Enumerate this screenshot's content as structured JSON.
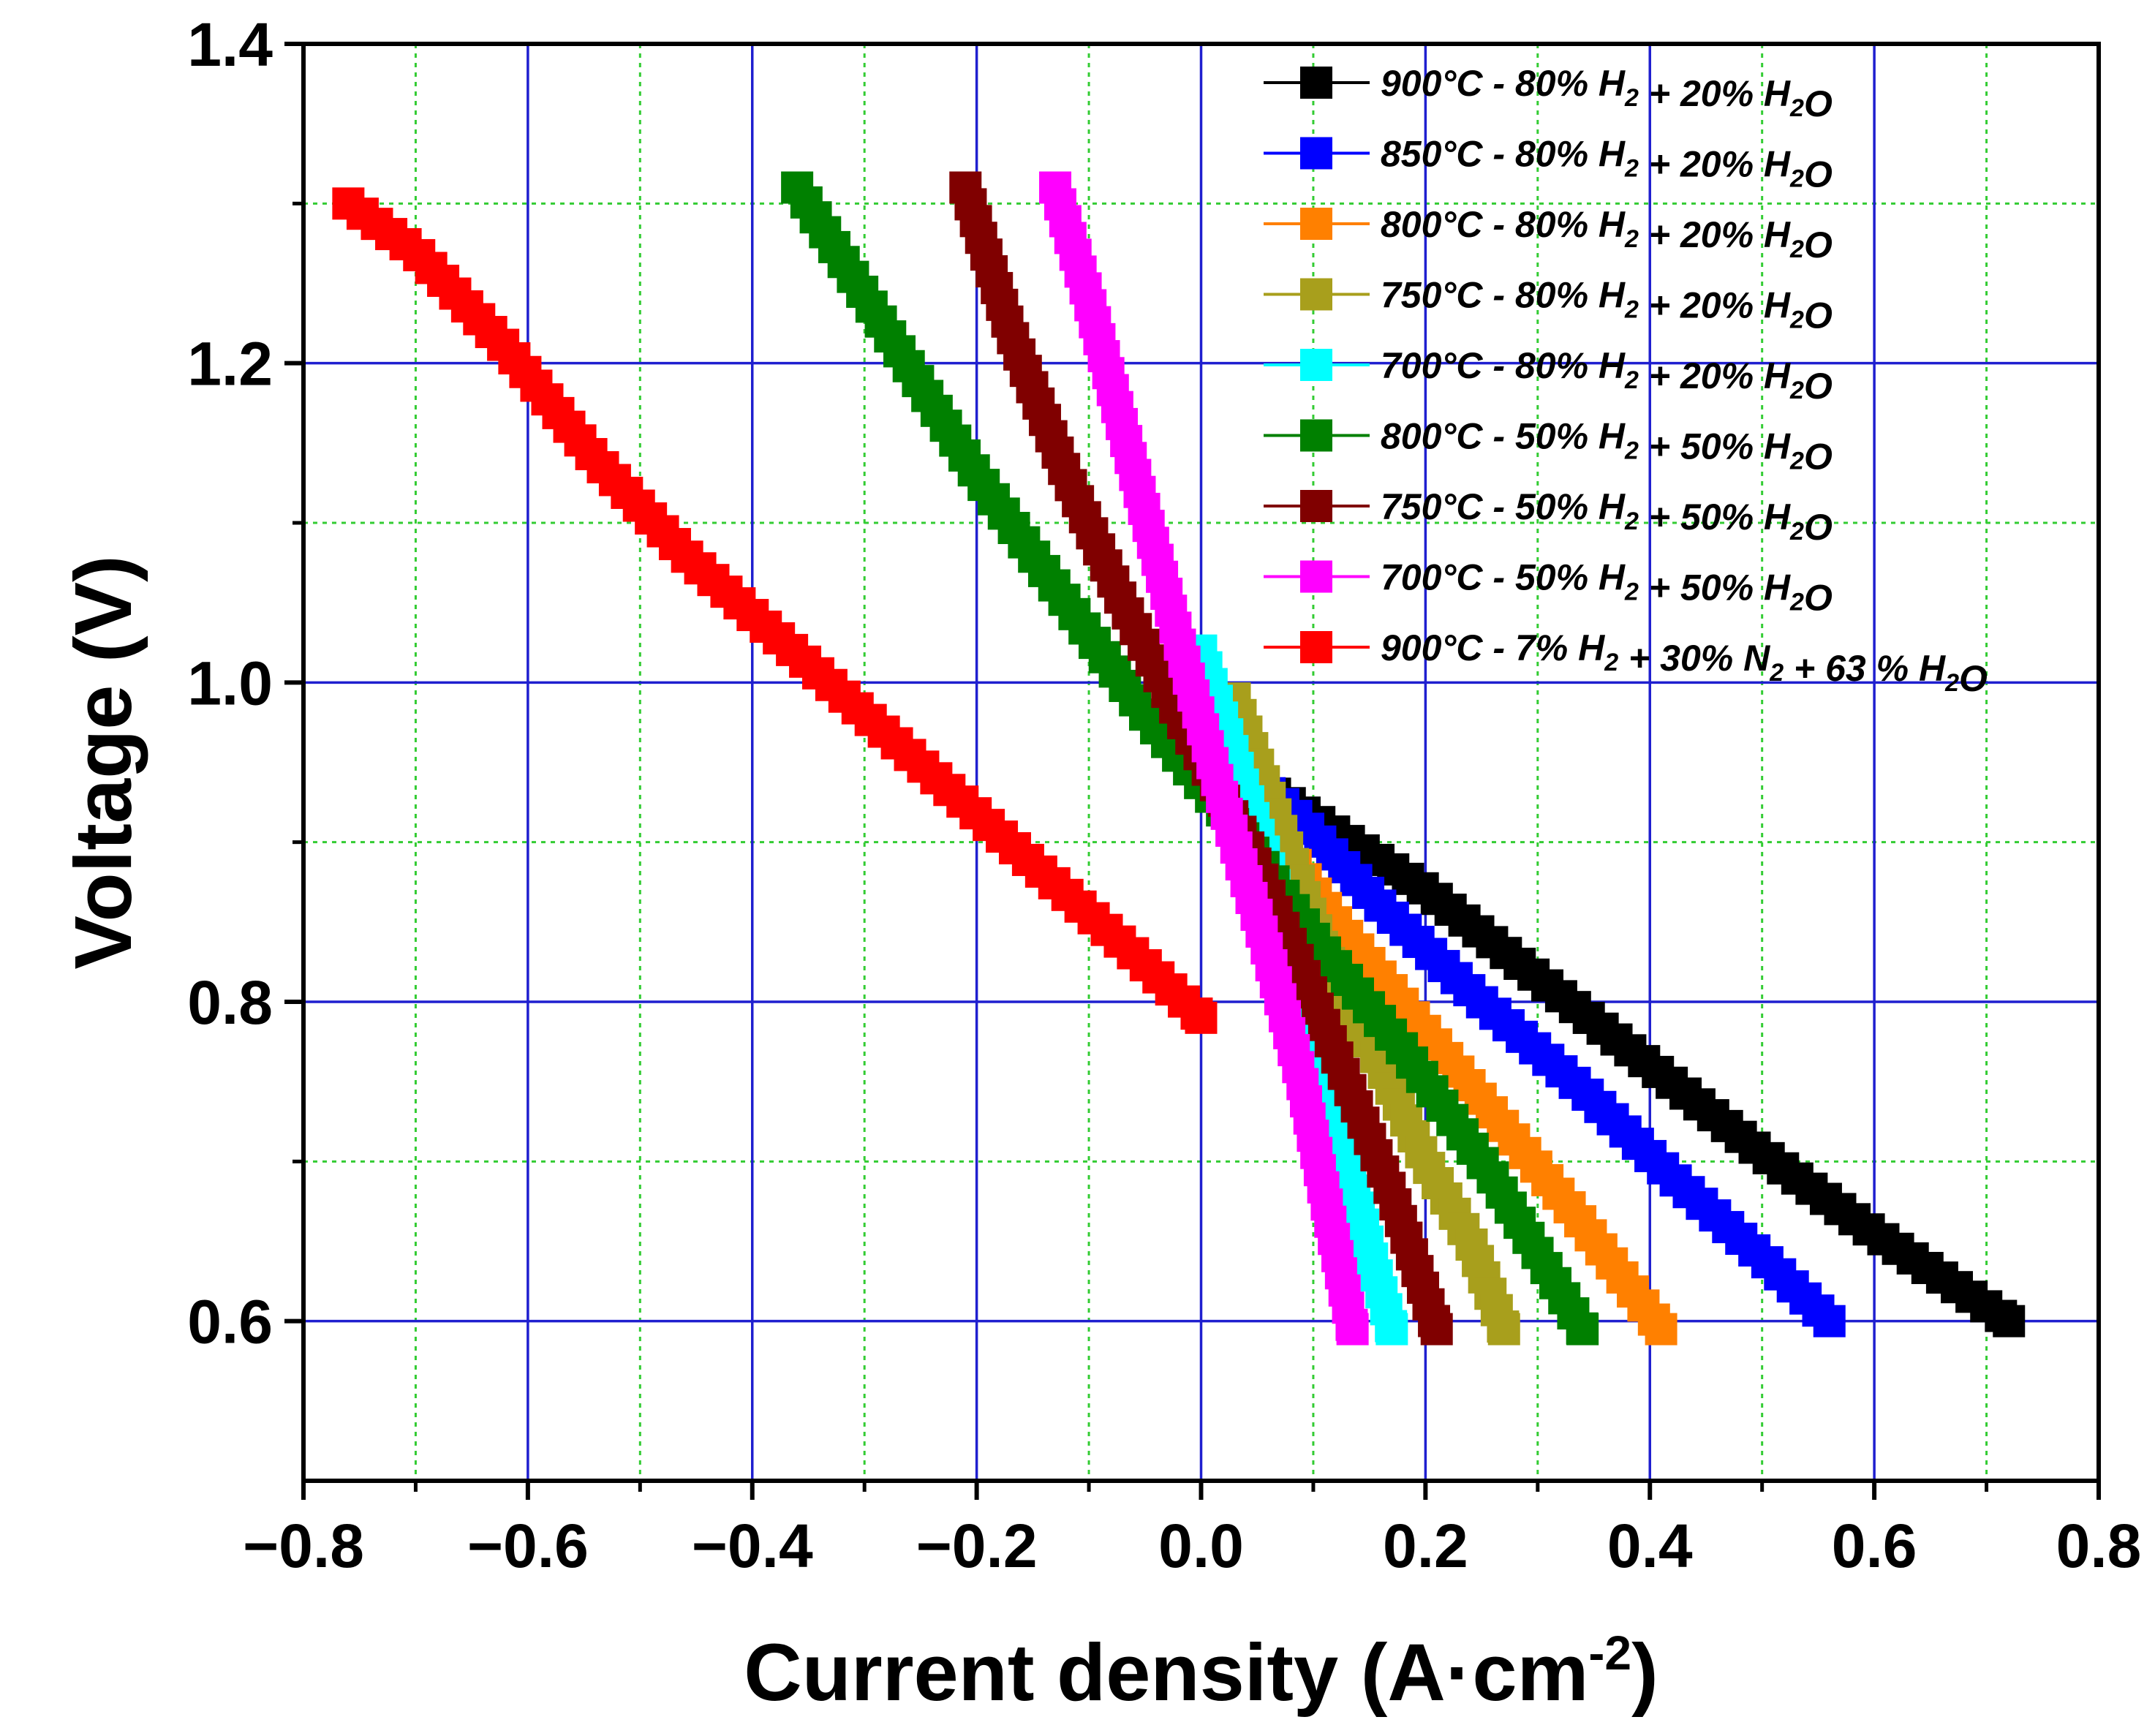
{
  "chart_data": {
    "type": "scatter",
    "title": "",
    "xlabel": "Current density (A·cm",
    "xlabel_sup": "-2",
    "xlabel_close": ")",
    "ylabel": "Voltage (V)",
    "xlim": [
      -0.8,
      0.8
    ],
    "ylim": [
      0.5,
      1.4
    ],
    "x_ticks": [
      -0.8,
      -0.6,
      -0.4,
      -0.2,
      0.0,
      0.2,
      0.4,
      0.6,
      0.8
    ],
    "x_tick_labels": [
      "−0.8",
      "−0.6",
      "−0.4",
      "−0.2",
      "0.0",
      "0.2",
      "0.4",
      "0.6",
      "0.8"
    ],
    "y_ticks": [
      0.6,
      0.8,
      1.0,
      1.2,
      1.4
    ],
    "y_tick_labels": [
      "0.6",
      "0.8",
      "1.0",
      "1.2",
      "1.4"
    ],
    "x_minor_ticks": [
      -0.7,
      -0.5,
      -0.3,
      -0.1,
      0.1,
      0.3,
      0.5,
      0.7
    ],
    "y_minor_ticks": [
      0.7,
      0.9,
      1.1,
      1.3
    ],
    "major_grid_color": "#1f1fcf",
    "minor_grid_color": "#33cc33",
    "legend_position": "top-right",
    "series": [
      {
        "name": "900°C - 80% H2 + 20% H2O",
        "label_parts": [
          [
            "900°C - 80% H",
            ""
          ],
          [
            "2",
            "sub"
          ],
          [
            " + 20% H",
            ""
          ],
          [
            "2",
            "sub"
          ],
          [
            "O",
            ""
          ]
        ],
        "color": "#000000",
        "points": [
          [
            0.0,
            0.96
          ],
          [
            0.1,
            0.915
          ],
          [
            0.2,
            0.87
          ],
          [
            0.3,
            0.815
          ],
          [
            0.4,
            0.76
          ],
          [
            0.5,
            0.705
          ],
          [
            0.6,
            0.655
          ],
          [
            0.72,
            0.6
          ]
        ]
      },
      {
        "name": "850°C - 80% H2 + 20% H2O",
        "label_parts": [
          [
            "850°C - 80% H",
            ""
          ],
          [
            "2",
            "sub"
          ],
          [
            " + 20% H",
            ""
          ],
          [
            "2",
            "sub"
          ],
          [
            "O",
            ""
          ]
        ],
        "color": "#0000ff",
        "points": [
          [
            0.0,
            0.965
          ],
          [
            0.08,
            0.92
          ],
          [
            0.16,
            0.86
          ],
          [
            0.25,
            0.8
          ],
          [
            0.34,
            0.745
          ],
          [
            0.42,
            0.69
          ],
          [
            0.5,
            0.64
          ],
          [
            0.56,
            0.6
          ]
        ]
      },
      {
        "name": "800°C - 80% H2 + 20% H2O",
        "label_parts": [
          [
            "800°C - 80% H",
            ""
          ],
          [
            "2",
            "sub"
          ],
          [
            " + 20% H",
            ""
          ],
          [
            "2",
            "sub"
          ],
          [
            "O",
            ""
          ]
        ],
        "color": "#ff8000",
        "points": [
          [
            0.0,
            0.965
          ],
          [
            0.06,
            0.91
          ],
          [
            0.12,
            0.85
          ],
          [
            0.19,
            0.79
          ],
          [
            0.26,
            0.73
          ],
          [
            0.33,
            0.67
          ],
          [
            0.41,
            0.595
          ]
        ]
      },
      {
        "name": "750°C - 80% H2 + 20% H2O",
        "label_parts": [
          [
            "750°C - 80% H",
            ""
          ],
          [
            "2",
            "sub"
          ],
          [
            " + 20% H",
            ""
          ],
          [
            "2",
            "sub"
          ],
          [
            "O",
            ""
          ]
        ],
        "color": "#a89f1c",
        "points": [
          [
            0.03,
            0.99
          ],
          [
            0.07,
            0.91
          ],
          [
            0.11,
            0.83
          ],
          [
            0.16,
            0.76
          ],
          [
            0.2,
            0.7
          ],
          [
            0.24,
            0.65
          ],
          [
            0.27,
            0.595
          ]
        ]
      },
      {
        "name": "700°C - 80% H2 + 20% H2O",
        "label_parts": [
          [
            "700°C - 80% H",
            ""
          ],
          [
            "2",
            "sub"
          ],
          [
            " + 20% H",
            ""
          ],
          [
            "2",
            "sub"
          ],
          [
            "O",
            ""
          ]
        ],
        "color": "#00ffff",
        "points": [
          [
            0.0,
            1.02
          ],
          [
            0.04,
            0.93
          ],
          [
            0.08,
            0.84
          ],
          [
            0.11,
            0.76
          ],
          [
            0.13,
            0.7
          ],
          [
            0.15,
            0.645
          ],
          [
            0.17,
            0.595
          ]
        ]
      },
      {
        "name": "800°C - 50% H2 + 50% H2O",
        "label_parts": [
          [
            "800°C - 50% H",
            ""
          ],
          [
            "2",
            "sub"
          ],
          [
            " + 50% H",
            ""
          ],
          [
            "2",
            "sub"
          ],
          [
            "O",
            ""
          ]
        ],
        "color": "#008000",
        "points": [
          [
            -0.36,
            1.31
          ],
          [
            -0.28,
            1.22
          ],
          [
            -0.2,
            1.13
          ],
          [
            -0.12,
            1.05
          ],
          [
            -0.05,
            0.98
          ],
          [
            0.03,
            0.91
          ],
          [
            0.1,
            0.84
          ],
          [
            0.18,
            0.77
          ],
          [
            0.26,
            0.69
          ],
          [
            0.34,
            0.595
          ]
        ]
      },
      {
        "name": "750°C - 50% H2 + 50% H2O",
        "label_parts": [
          [
            "750°C - 50% H",
            ""
          ],
          [
            "2",
            "sub"
          ],
          [
            " + 50% H",
            ""
          ],
          [
            "2",
            "sub"
          ],
          [
            "O",
            ""
          ]
        ],
        "color": "#800000",
        "points": [
          [
            -0.21,
            1.31
          ],
          [
            -0.17,
            1.22
          ],
          [
            -0.12,
            1.13
          ],
          [
            -0.07,
            1.05
          ],
          [
            -0.02,
            0.98
          ],
          [
            0.04,
            0.9
          ],
          [
            0.09,
            0.82
          ],
          [
            0.13,
            0.75
          ],
          [
            0.17,
            0.68
          ],
          [
            0.21,
            0.595
          ]
        ]
      },
      {
        "name": "700°C - 50% H2 + 50% H2O",
        "label_parts": [
          [
            "700°C - 50% H",
            ""
          ],
          [
            "2",
            "sub"
          ],
          [
            " + 50% H",
            ""
          ],
          [
            "2",
            "sub"
          ],
          [
            "O",
            ""
          ]
        ],
        "color": "#ff00ff",
        "points": [
          [
            -0.13,
            1.31
          ],
          [
            -0.1,
            1.24
          ],
          [
            -0.07,
            1.16
          ],
          [
            -0.04,
            1.08
          ],
          [
            -0.01,
            1.0
          ],
          [
            0.03,
            0.9
          ],
          [
            0.06,
            0.83
          ],
          [
            0.09,
            0.75
          ],
          [
            0.11,
            0.68
          ],
          [
            0.135,
            0.595
          ]
        ]
      },
      {
        "name": "900°C - 7% H2 + 30% N2 + 63 % H2O",
        "label_parts": [
          [
            "900°C - 7% H",
            ""
          ],
          [
            "2",
            "sub"
          ],
          [
            " + 30% N",
            ""
          ],
          [
            "2",
            "sub"
          ],
          [
            " + 63 % H",
            ""
          ],
          [
            "2",
            "sub"
          ],
          [
            "O",
            ""
          ]
        ],
        "color": "#ff0000",
        "points": [
          [
            -0.76,
            1.3
          ],
          [
            -0.7,
            1.27
          ],
          [
            -0.62,
            1.21
          ],
          [
            -0.54,
            1.14
          ],
          [
            -0.46,
            1.08
          ],
          [
            -0.38,
            1.03
          ],
          [
            -0.3,
            0.98
          ],
          [
            -0.22,
            0.93
          ],
          [
            -0.14,
            0.88
          ],
          [
            -0.06,
            0.83
          ],
          [
            0.0,
            0.79
          ]
        ]
      }
    ]
  }
}
